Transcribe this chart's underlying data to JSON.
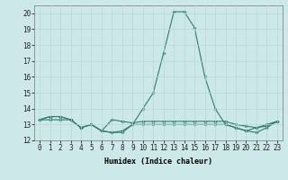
{
  "xlabel": "Humidex (Indice chaleur)",
  "x": [
    0,
    1,
    2,
    3,
    4,
    5,
    6,
    7,
    8,
    9,
    10,
    11,
    12,
    13,
    14,
    15,
    16,
    17,
    18,
    19,
    20,
    21,
    22,
    23
  ],
  "line1": [
    13.3,
    13.5,
    13.5,
    13.3,
    12.8,
    13.0,
    12.6,
    12.5,
    12.6,
    13.0,
    14.0,
    15.0,
    17.5,
    20.1,
    20.1,
    19.1,
    16.0,
    14.0,
    13.0,
    12.8,
    12.6,
    12.8,
    13.0,
    13.2
  ],
  "line2": [
    13.3,
    13.5,
    13.5,
    13.3,
    12.8,
    13.0,
    12.6,
    13.3,
    13.2,
    13.1,
    13.2,
    13.2,
    13.2,
    13.2,
    13.2,
    13.2,
    13.2,
    13.2,
    13.2,
    13.0,
    12.9,
    12.8,
    12.9,
    13.2
  ],
  "line3": [
    13.3,
    13.3,
    13.3,
    13.3,
    12.8,
    13.0,
    12.6,
    12.5,
    12.5,
    13.0,
    13.0,
    13.0,
    13.0,
    13.0,
    13.0,
    13.0,
    13.0,
    13.0,
    13.0,
    12.8,
    12.6,
    12.5,
    12.8,
    13.2
  ],
  "line_color": "#2e7d6e",
  "bg_color": "#cce8e8",
  "grid_color": "#b8d8d8",
  "ylim": [
    12,
    20.5
  ],
  "xlim": [
    -0.5,
    23.5
  ],
  "yticks": [
    12,
    13,
    14,
    15,
    16,
    17,
    18,
    19,
    20
  ],
  "xticks": [
    0,
    1,
    2,
    3,
    4,
    5,
    6,
    7,
    8,
    9,
    10,
    11,
    12,
    13,
    14,
    15,
    16,
    17,
    18,
    19,
    20,
    21,
    22,
    23
  ],
  "xlabel_fontsize": 6.0,
  "tick_fontsize": 5.5
}
